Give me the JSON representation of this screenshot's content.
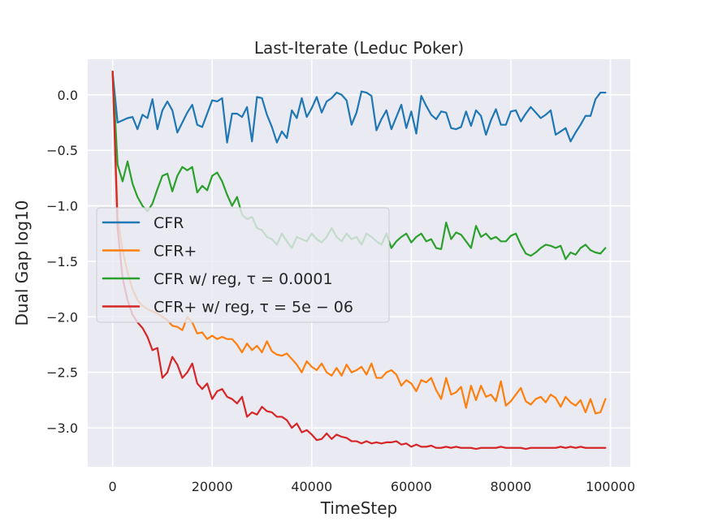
{
  "chart_data": {
    "type": "line",
    "title": "Last-Iterate (Leduc Poker)",
    "xlabel": "TimeStep",
    "ylabel": "Dual Gap log10",
    "xlim": [
      -5000,
      104000
    ],
    "ylim": [
      -3.35,
      0.32
    ],
    "xticks": [
      0,
      20000,
      40000,
      60000,
      80000,
      100000
    ],
    "xtick_labels": [
      "0",
      "20000",
      "40000",
      "60000",
      "80000",
      "100000"
    ],
    "yticks": [
      0.0,
      -0.5,
      -1.0,
      -1.5,
      -2.0,
      -2.5,
      -3.0
    ],
    "ytick_labels": [
      "0.0",
      "−0.5",
      "−1.0",
      "−1.5",
      "−2.0",
      "−2.5",
      "−3.0"
    ],
    "grid": true,
    "background": "#eaeaf2",
    "legend_position": "center-left",
    "x": [
      0,
      1000,
      2000,
      3000,
      4000,
      5000,
      6000,
      7000,
      8000,
      9000,
      10000,
      11000,
      12000,
      13000,
      14000,
      15000,
      16000,
      17000,
      18000,
      19000,
      20000,
      21000,
      22000,
      23000,
      24000,
      25000,
      26000,
      27000,
      28000,
      29000,
      30000,
      31000,
      32000,
      33000,
      34000,
      35000,
      36000,
      37000,
      38000,
      39000,
      40000,
      41000,
      42000,
      43000,
      44000,
      45000,
      46000,
      47000,
      48000,
      49000,
      50000,
      51000,
      52000,
      53000,
      54000,
      55000,
      56000,
      57000,
      58000,
      59000,
      60000,
      61000,
      62000,
      63000,
      64000,
      65000,
      66000,
      67000,
      68000,
      69000,
      70000,
      71000,
      72000,
      73000,
      74000,
      75000,
      76000,
      77000,
      78000,
      79000,
      80000,
      81000,
      82000,
      83000,
      84000,
      85000,
      86000,
      87000,
      88000,
      89000,
      90000,
      91000,
      92000,
      93000,
      94000,
      95000,
      96000,
      97000,
      98000,
      99000
    ],
    "series": [
      {
        "name": "CFR",
        "color": "#1f77b4",
        "values": [
          0.2,
          -0.25,
          -0.23,
          -0.21,
          -0.2,
          -0.31,
          -0.18,
          -0.21,
          -0.04,
          -0.31,
          -0.14,
          -0.06,
          -0.14,
          -0.34,
          -0.25,
          -0.16,
          -0.09,
          -0.27,
          -0.29,
          -0.17,
          -0.05,
          -0.06,
          -0.03,
          -0.43,
          -0.17,
          -0.17,
          -0.2,
          -0.11,
          -0.42,
          -0.02,
          -0.03,
          -0.18,
          -0.29,
          -0.43,
          -0.33,
          -0.39,
          -0.14,
          -0.21,
          -0.03,
          -0.2,
          -0.12,
          -0.02,
          -0.16,
          -0.06,
          -0.03,
          0.02,
          0.0,
          -0.05,
          -0.27,
          -0.16,
          0.03,
          0.02,
          -0.01,
          -0.32,
          -0.22,
          -0.14,
          -0.31,
          -0.2,
          -0.09,
          -0.3,
          -0.15,
          -0.35,
          -0.01,
          -0.1,
          -0.18,
          -0.22,
          -0.15,
          -0.16,
          -0.3,
          -0.31,
          -0.29,
          -0.15,
          -0.28,
          -0.14,
          -0.19,
          -0.36,
          -0.23,
          -0.13,
          -0.27,
          -0.27,
          -0.15,
          -0.14,
          -0.24,
          -0.17,
          -0.11,
          -0.16,
          -0.21,
          -0.18,
          -0.14,
          -0.36,
          -0.33,
          -0.3,
          -0.42,
          -0.34,
          -0.27,
          -0.19,
          -0.19,
          -0.04,
          0.02,
          0.02
        ]
      },
      {
        "name": "CFR+",
        "color": "#ff7f0e",
        "values": [
          0.21,
          -1.1,
          -1.4,
          -1.6,
          -1.75,
          -1.85,
          -1.9,
          -1.93,
          -1.95,
          -1.97,
          -2.0,
          -2.03,
          -2.08,
          -2.09,
          -2.12,
          -2.0,
          -2.05,
          -2.15,
          -2.14,
          -2.2,
          -2.17,
          -2.2,
          -2.18,
          -2.2,
          -2.2,
          -2.25,
          -2.32,
          -2.24,
          -2.3,
          -2.26,
          -2.32,
          -2.22,
          -2.31,
          -2.34,
          -2.35,
          -2.33,
          -2.38,
          -2.43,
          -2.5,
          -2.4,
          -2.45,
          -2.48,
          -2.42,
          -2.5,
          -2.53,
          -2.46,
          -2.53,
          -2.43,
          -2.5,
          -2.48,
          -2.45,
          -2.52,
          -2.42,
          -2.55,
          -2.55,
          -2.5,
          -2.48,
          -2.52,
          -2.62,
          -2.57,
          -2.6,
          -2.67,
          -2.57,
          -2.59,
          -2.55,
          -2.66,
          -2.74,
          -2.55,
          -2.7,
          -2.68,
          -2.63,
          -2.82,
          -2.62,
          -2.75,
          -2.62,
          -2.72,
          -2.7,
          -2.76,
          -2.58,
          -2.8,
          -2.76,
          -2.7,
          -2.64,
          -2.76,
          -2.79,
          -2.74,
          -2.72,
          -2.77,
          -2.7,
          -2.73,
          -2.81,
          -2.72,
          -2.77,
          -2.8,
          -2.75,
          -2.86,
          -2.74,
          -2.87,
          -2.86,
          -2.74
        ]
      },
      {
        "name": "CFR w/ reg, τ=0.0001",
        "color": "#2ca02c",
        "values": [
          0.21,
          -0.63,
          -0.78,
          -0.6,
          -0.8,
          -0.92,
          -1.0,
          -1.05,
          -0.98,
          -0.85,
          -0.73,
          -0.71,
          -0.87,
          -0.73,
          -0.65,
          -0.68,
          -0.65,
          -0.88,
          -0.82,
          -0.86,
          -0.73,
          -0.7,
          -0.78,
          -0.9,
          -1.0,
          -0.92,
          -1.08,
          -1.12,
          -1.1,
          -1.2,
          -1.22,
          -1.28,
          -1.3,
          -1.35,
          -1.25,
          -1.32,
          -1.38,
          -1.28,
          -1.3,
          -1.32,
          -1.25,
          -1.3,
          -1.33,
          -1.28,
          -1.2,
          -1.28,
          -1.32,
          -1.25,
          -1.3,
          -1.28,
          -1.35,
          -1.25,
          -1.28,
          -1.32,
          -1.35,
          -1.25,
          -1.38,
          -1.32,
          -1.28,
          -1.25,
          -1.33,
          -1.28,
          -1.25,
          -1.32,
          -1.3,
          -1.38,
          -1.39,
          -1.15,
          -1.3,
          -1.24,
          -1.26,
          -1.32,
          -1.38,
          -1.18,
          -1.28,
          -1.25,
          -1.3,
          -1.28,
          -1.32,
          -1.32,
          -1.27,
          -1.25,
          -1.35,
          -1.43,
          -1.45,
          -1.42,
          -1.38,
          -1.35,
          -1.36,
          -1.38,
          -1.36,
          -1.48,
          -1.42,
          -1.44,
          -1.38,
          -1.35,
          -1.4,
          -1.42,
          -1.43,
          -1.38
        ]
      },
      {
        "name": "CFR+ w/ reg, τ=5e−06",
        "color": "#d62728",
        "values": [
          0.21,
          -1.2,
          -1.65,
          -1.85,
          -1.98,
          -2.05,
          -2.1,
          -2.18,
          -2.3,
          -2.28,
          -2.55,
          -2.5,
          -2.36,
          -2.43,
          -2.55,
          -2.5,
          -2.42,
          -2.6,
          -2.65,
          -2.6,
          -2.74,
          -2.67,
          -2.65,
          -2.72,
          -2.74,
          -2.78,
          -2.72,
          -2.9,
          -2.86,
          -2.88,
          -2.81,
          -2.85,
          -2.86,
          -2.9,
          -2.9,
          -2.93,
          -3.0,
          -2.96,
          -3.04,
          -3.02,
          -3.06,
          -3.11,
          -3.1,
          -3.05,
          -3.1,
          -3.06,
          -3.08,
          -3.09,
          -3.12,
          -3.12,
          -3.14,
          -3.12,
          -3.14,
          -3.13,
          -3.14,
          -3.13,
          -3.13,
          -3.12,
          -3.15,
          -3.14,
          -3.17,
          -3.15,
          -3.17,
          -3.17,
          -3.16,
          -3.18,
          -3.18,
          -3.17,
          -3.18,
          -3.17,
          -3.18,
          -3.18,
          -3.18,
          -3.19,
          -3.18,
          -3.18,
          -3.18,
          -3.18,
          -3.17,
          -3.18,
          -3.18,
          -3.18,
          -3.18,
          -3.19,
          -3.18,
          -3.18,
          -3.18,
          -3.18,
          -3.18,
          -3.18,
          -3.17,
          -3.18,
          -3.17,
          -3.18,
          -3.17,
          -3.18,
          -3.18,
          -3.18,
          -3.18,
          -3.18
        ]
      }
    ],
    "legend": [
      {
        "text": "CFR",
        "color": "#1f77b4"
      },
      {
        "text": "CFR+",
        "color": "#ff7f0e"
      },
      {
        "text": "CFR w/ reg, τ = 0.0001",
        "color": "#2ca02c"
      },
      {
        "text": "CFR+ w/ reg, τ = 5e − 06",
        "color": "#d62728"
      }
    ]
  }
}
